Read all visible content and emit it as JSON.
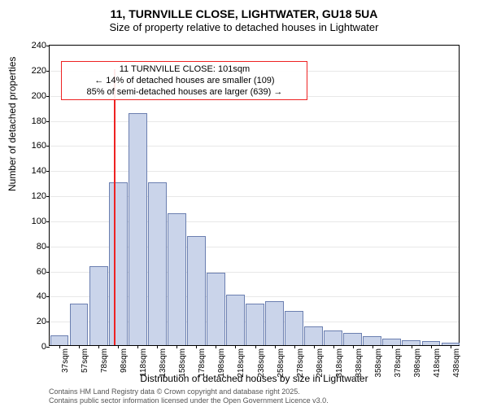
{
  "title": "11, TURNVILLE CLOSE, LIGHTWATER, GU18 5UA",
  "subtitle": "Size of property relative to detached houses in Lightwater",
  "ylabel": "Number of detached properties",
  "xlabel": "Distribution of detached houses by size in Lightwater",
  "footer_line1": "Contains HM Land Registry data © Crown copyright and database right 2025.",
  "footer_line2": "Contains public sector information licensed under the Open Government Licence v3.0.",
  "chart": {
    "type": "histogram",
    "ylim": [
      0,
      240
    ],
    "ytick_step": 20,
    "yticks": [
      0,
      20,
      40,
      60,
      80,
      100,
      120,
      140,
      160,
      180,
      200,
      220,
      240
    ],
    "xticks": [
      "37sqm",
      "57sqm",
      "78sqm",
      "98sqm",
      "118sqm",
      "138sqm",
      "158sqm",
      "178sqm",
      "198sqm",
      "218sqm",
      "238sqm",
      "258sqm",
      "278sqm",
      "298sqm",
      "318sqm",
      "338sqm",
      "358sqm",
      "378sqm",
      "398sqm",
      "418sqm",
      "438sqm"
    ],
    "bar_values": [
      8,
      33,
      63,
      130,
      185,
      130,
      105,
      87,
      58,
      40,
      33,
      35,
      27,
      15,
      12,
      10,
      7,
      5,
      4,
      3,
      2
    ],
    "bar_color": "#cad4ea",
    "bar_border": "#6b7fb0",
    "bar_width_ratio": 0.95,
    "grid_color": "#e8e8e8",
    "background_color": "#ffffff",
    "axis_color": "#000000",
    "marker": {
      "position_bin": 3.3,
      "color": "#ee2222",
      "height_value": 220
    },
    "annotation": {
      "line1": "11 TURNVILLE CLOSE: 101sqm",
      "line2": "← 14% of detached houses are smaller (109)",
      "line3": "85% of semi-detached houses are larger (639) →",
      "border_color": "#ee2222",
      "top_value": 228,
      "left_bin": 0.6,
      "width_bins": 12.6
    }
  }
}
